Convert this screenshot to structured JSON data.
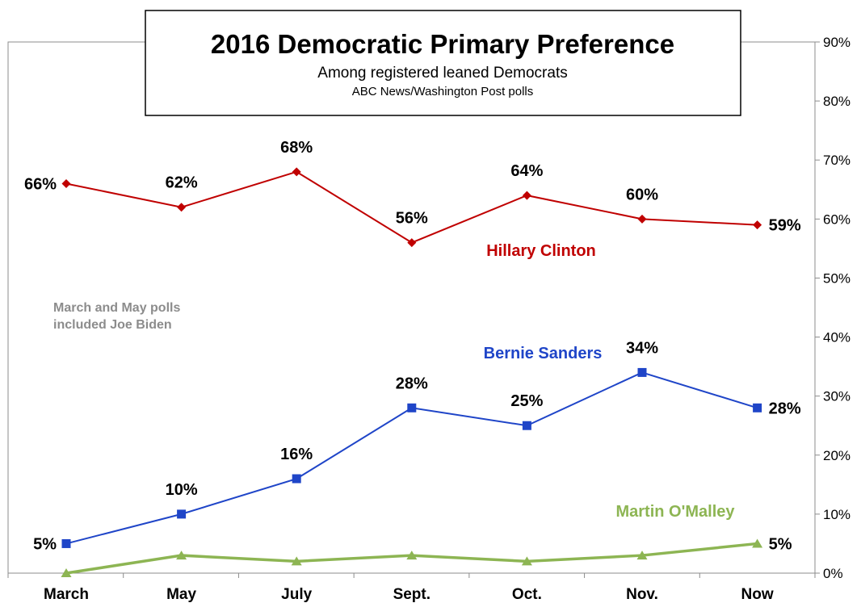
{
  "title_box": {
    "title": "2016 Democratic Primary Preference",
    "subtitle": "Among registered leaned Democrats",
    "source": "ABC News/Washington  Post polls"
  },
  "note": {
    "line1": "March and May polls",
    "line2": "included Joe Biden"
  },
  "chart_data": {
    "type": "line",
    "title": "2016 Democratic Primary Preference",
    "subtitle": "Among registered leaned Democrats",
    "categories": [
      "March",
      "May",
      "July",
      "Sept.",
      "Oct.",
      "Nov.",
      "Now"
    ],
    "ylim": [
      0,
      90
    ],
    "yticks": [
      "0%",
      "10%",
      "20%",
      "30%",
      "40%",
      "50%",
      "60%",
      "70%",
      "80%",
      "90%"
    ],
    "y_axis_position": "right",
    "grid": false,
    "series": [
      {
        "name": "Hillary Clinton",
        "color": "#c00000",
        "marker": "diamond",
        "values": [
          66,
          62,
          68,
          56,
          64,
          60,
          59
        ],
        "labels": [
          "66%",
          "62%",
          "68%",
          "56%",
          "64%",
          "60%",
          "59%"
        ]
      },
      {
        "name": "Bernie Sanders",
        "color": "#1f45c8",
        "marker": "square",
        "values": [
          5,
          10,
          16,
          28,
          25,
          34,
          28
        ],
        "labels": [
          "5%",
          "10%",
          "16%",
          "28%",
          "25%",
          "34%",
          "28%"
        ]
      },
      {
        "name": "Martin O'Malley",
        "color": "#8db553",
        "marker": "triangle",
        "values": [
          0,
          3,
          2,
          3,
          2,
          3,
          5
        ],
        "labels": [
          "",
          "",
          "",
          "",
          "",
          "",
          "5%"
        ]
      }
    ]
  }
}
